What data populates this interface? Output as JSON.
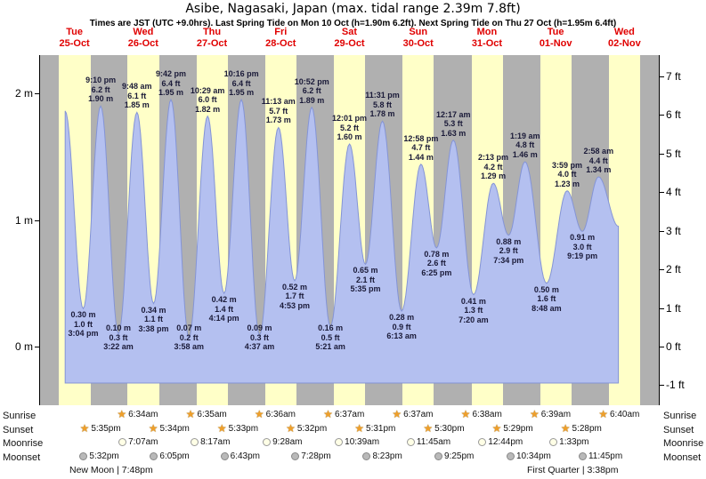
{
  "title": "Asibe, Nagasaki, Japan (max. tidal range 2.39m 7.8ft)",
  "subtitle": "Times are JST (UTC +9.0hrs). Last Spring Tide on Mon 10 Oct (h=1.90m 6.2ft). Next Spring Tide on Thu 27 Oct (h=1.95m 6.4ft)",
  "days": [
    {
      "dow": "Tue",
      "date": "25-Oct"
    },
    {
      "dow": "Wed",
      "date": "26-Oct"
    },
    {
      "dow": "Thu",
      "date": "27-Oct"
    },
    {
      "dow": "Fri",
      "date": "28-Oct"
    },
    {
      "dow": "Sat",
      "date": "29-Oct"
    },
    {
      "dow": "Sun",
      "date": "30-Oct"
    },
    {
      "dow": "Mon",
      "date": "31-Oct"
    },
    {
      "dow": "Tue",
      "date": "01-Nov"
    },
    {
      "dow": "Wed",
      "date": "02-Nov"
    }
  ],
  "y_axis": {
    "left": [
      {
        "label": "2 m",
        "m": 2
      },
      {
        "label": "1 m",
        "m": 1
      },
      {
        "label": "0 m",
        "m": 0
      }
    ],
    "right": [
      {
        "label": "7 ft",
        "ft": 7
      },
      {
        "label": "6 ft",
        "ft": 6
      },
      {
        "label": "5 ft",
        "ft": 5
      },
      {
        "label": "4 ft",
        "ft": 4
      },
      {
        "label": "3 ft",
        "ft": 3
      },
      {
        "label": "2 ft",
        "ft": 2
      },
      {
        "label": "1 ft",
        "ft": 1
      },
      {
        "label": "0 ft",
        "ft": 0
      },
      {
        "label": "-1 ft",
        "ft": -1
      }
    ]
  },
  "chart_data": {
    "type": "area",
    "title": "Tide height over time, Asibe, Nagasaki, Japan, Tue 25-Oct to Wed 02-Nov",
    "xlabel": "day (times JST)",
    "ylabel_left": "height (m)",
    "ylabel_right": "height (ft)",
    "ylim_m": [
      -0.3,
      2.25
    ],
    "grid": "off",
    "legend": "none",
    "curve_start": {
      "day": 0,
      "time": "8:45 am",
      "m": 1.86
    },
    "curve_end": {
      "day": 8,
      "time": "9:54 am",
      "m": 0.95
    },
    "events": [
      {
        "day": 0,
        "time": "3:04 pm",
        "m": 0.3,
        "type": "low",
        "labels": [
          "0.30 m",
          "1.0 ft",
          "3:04 pm"
        ]
      },
      {
        "day": 0,
        "time": "9:10 pm",
        "m": 1.9,
        "type": "high",
        "labels": [
          "9:10 pm",
          "6.2 ft",
          "1.90 m"
        ]
      },
      {
        "day": 1,
        "time": "3:22 am",
        "m": 0.1,
        "type": "low",
        "labels": [
          "0.10 m",
          "0.3 ft",
          "3:22 am"
        ]
      },
      {
        "day": 1,
        "time": "9:48 am",
        "m": 1.85,
        "type": "high",
        "labels": [
          "9:48 am",
          "6.1 ft",
          "1.85 m"
        ]
      },
      {
        "day": 1,
        "time": "3:38 pm",
        "m": 0.34,
        "type": "low",
        "labels": [
          "0.34 m",
          "1.1 ft",
          "3:38 pm"
        ]
      },
      {
        "day": 1,
        "time": "9:42 pm",
        "m": 1.95,
        "type": "high",
        "labels": [
          "9:42 pm",
          "6.4 ft",
          "1.95 m"
        ]
      },
      {
        "day": 2,
        "time": "3:58 am",
        "m": 0.07,
        "type": "low",
        "labels": [
          "0.07 m",
          "0.2 ft",
          "3:58 am"
        ]
      },
      {
        "day": 2,
        "time": "10:29 am",
        "m": 1.82,
        "type": "high",
        "labels": [
          "10:29 am",
          "6.0 ft",
          "1.82 m"
        ]
      },
      {
        "day": 2,
        "time": "4:14 pm",
        "m": 0.42,
        "type": "low",
        "labels": [
          "0.42 m",
          "1.4 ft",
          "4:14 pm"
        ]
      },
      {
        "day": 2,
        "time": "10:16 pm",
        "m": 1.95,
        "type": "high",
        "labels": [
          "10:16 pm",
          "6.4 ft",
          "1.95 m"
        ]
      },
      {
        "day": 3,
        "time": "4:37 am",
        "m": 0.09,
        "type": "low",
        "labels": [
          "0.09 m",
          "0.3 ft",
          "4:37 am"
        ]
      },
      {
        "day": 3,
        "time": "11:13 am",
        "m": 1.73,
        "type": "high",
        "labels": [
          "11:13 am",
          "5.7 ft",
          "1.73 m"
        ]
      },
      {
        "day": 3,
        "time": "4:53 pm",
        "m": 0.52,
        "type": "low",
        "labels": [
          "0.52 m",
          "1.7 ft",
          "4:53 pm"
        ]
      },
      {
        "day": 3,
        "time": "10:52 pm",
        "m": 1.89,
        "type": "high",
        "labels": [
          "10:52 pm",
          "6.2 ft",
          "1.89 m"
        ]
      },
      {
        "day": 4,
        "time": "5:21 am",
        "m": 0.16,
        "type": "low",
        "labels": [
          "0.16 m",
          "0.5 ft",
          "5:21 am"
        ]
      },
      {
        "day": 4,
        "time": "12:01 pm",
        "m": 1.6,
        "type": "high",
        "labels": [
          "12:01 pm",
          "5.2 ft",
          "1.60 m"
        ]
      },
      {
        "day": 4,
        "time": "5:35 pm",
        "m": 0.65,
        "type": "low",
        "labels": [
          "0.65 m",
          "2.1 ft",
          "5:35 pm"
        ]
      },
      {
        "day": 4,
        "time": "11:31 pm",
        "m": 1.78,
        "type": "high",
        "labels": [
          "11:31 pm",
          "5.8 ft",
          "1.78 m"
        ]
      },
      {
        "day": 5,
        "time": "6:13 am",
        "m": 0.28,
        "type": "low",
        "labels": [
          "0.28 m",
          "0.9 ft",
          "6:13 am"
        ]
      },
      {
        "day": 5,
        "time": "12:58 pm",
        "m": 1.44,
        "type": "high",
        "labels": [
          "12:58 pm",
          "4.7 ft",
          "1.44 m"
        ]
      },
      {
        "day": 5,
        "time": "6:25 pm",
        "m": 0.78,
        "type": "low",
        "labels": [
          "0.78 m",
          "2.6 ft",
          "6:25 pm"
        ]
      },
      {
        "day": 6,
        "time": "12:17 am",
        "m": 1.63,
        "type": "high",
        "labels": [
          "12:17 am",
          "5.3 ft",
          "1.63 m"
        ]
      },
      {
        "day": 6,
        "time": "7:20 am",
        "m": 0.41,
        "type": "low",
        "labels": [
          "0.41 m",
          "1.3 ft",
          "7:20 am"
        ]
      },
      {
        "day": 6,
        "time": "2:13 pm",
        "m": 1.29,
        "type": "high",
        "labels": [
          "2:13 pm",
          "4.2 ft",
          "1.29 m"
        ]
      },
      {
        "day": 6,
        "time": "7:34 pm",
        "m": 0.88,
        "type": "low",
        "labels": [
          "0.88 m",
          "2.9 ft",
          "7:34 pm"
        ]
      },
      {
        "day": 7,
        "time": "1:19 am",
        "m": 1.46,
        "type": "high",
        "labels": [
          "1:19 am",
          "4.8 ft",
          "1.46 m"
        ]
      },
      {
        "day": 7,
        "time": "8:48 am",
        "m": 0.5,
        "type": "low",
        "labels": [
          "0.50 m",
          "1.6 ft",
          "8:48 am"
        ]
      },
      {
        "day": 7,
        "time": "3:59 pm",
        "m": 1.23,
        "type": "high",
        "labels": [
          "3:59 pm",
          "4.0 ft",
          "1.23 m"
        ]
      },
      {
        "day": 7,
        "time": "9:19 pm",
        "m": 0.91,
        "type": "low",
        "labels": [
          "0.91 m",
          "3.0 ft",
          "9:19 pm"
        ]
      },
      {
        "day": 8,
        "time": "2:58 am",
        "m": 1.34,
        "type": "high",
        "labels": [
          "2:58 am",
          "4.4 ft",
          "1.34 m"
        ]
      }
    ]
  },
  "sun_moon": {
    "rows": [
      {
        "label": "Sunrise",
        "icon": "sunrise-star",
        "type": "sun",
        "entries": [
          {
            "day": 1,
            "time": "6:34am"
          },
          {
            "day": 2,
            "time": "6:35am"
          },
          {
            "day": 3,
            "time": "6:36am"
          },
          {
            "day": 4,
            "time": "6:37am"
          },
          {
            "day": 5,
            "time": "6:37am"
          },
          {
            "day": 6,
            "time": "6:38am"
          },
          {
            "day": 7,
            "time": "6:39am"
          },
          {
            "day": 8,
            "time": "6:40am"
          }
        ]
      },
      {
        "label": "Sunset",
        "icon": "sunset-star",
        "type": "sun",
        "entries": [
          {
            "day": 0,
            "time": "5:35pm"
          },
          {
            "day": 1,
            "time": "5:34pm"
          },
          {
            "day": 2,
            "time": "5:33pm"
          },
          {
            "day": 3,
            "time": "5:32pm"
          },
          {
            "day": 4,
            "time": "5:31pm"
          },
          {
            "day": 5,
            "time": "5:30pm"
          },
          {
            "day": 6,
            "time": "5:29pm"
          },
          {
            "day": 7,
            "time": "5:28pm"
          }
        ]
      },
      {
        "label": "Moonrise",
        "icon": "moonrise-circle",
        "type": "moonrise",
        "entries": [
          {
            "day": 1,
            "time": "7:07am"
          },
          {
            "day": 2,
            "time": "8:17am"
          },
          {
            "day": 3,
            "time": "9:28am"
          },
          {
            "day": 4,
            "time": "10:39am"
          },
          {
            "day": 5,
            "time": "11:45am"
          },
          {
            "day": 6,
            "time": "12:44pm"
          },
          {
            "day": 7,
            "time": "1:33pm"
          }
        ]
      },
      {
        "label": "Moonset",
        "icon": "moonset-circle",
        "type": "moonset",
        "entries": [
          {
            "day": 0,
            "time": "5:32pm"
          },
          {
            "day": 1,
            "time": "6:05pm"
          },
          {
            "day": 2,
            "time": "6:43pm"
          },
          {
            "day": 3,
            "time": "7:28pm"
          },
          {
            "day": 4,
            "time": "8:23pm"
          },
          {
            "day": 5,
            "time": "9:25pm"
          },
          {
            "day": 6,
            "time": "10:34pm"
          },
          {
            "day": 7,
            "time": "11:45pm"
          }
        ]
      }
    ],
    "phases": {
      "new_moon": "New Moon | 7:48pm",
      "first_quarter": "First Quarter | 3:38pm"
    }
  },
  "colors": {
    "day_band": "#ffffc8",
    "night_band": "#b0b0b0",
    "tide_fill": "#b4c0f0",
    "tide_stroke": "#8494d6",
    "day_label": "#e00000",
    "annotation": "#1a1a38",
    "star": "#ef9f2a",
    "moon_light": "#ffffe6",
    "moon_dark": "#b9b9b9"
  }
}
